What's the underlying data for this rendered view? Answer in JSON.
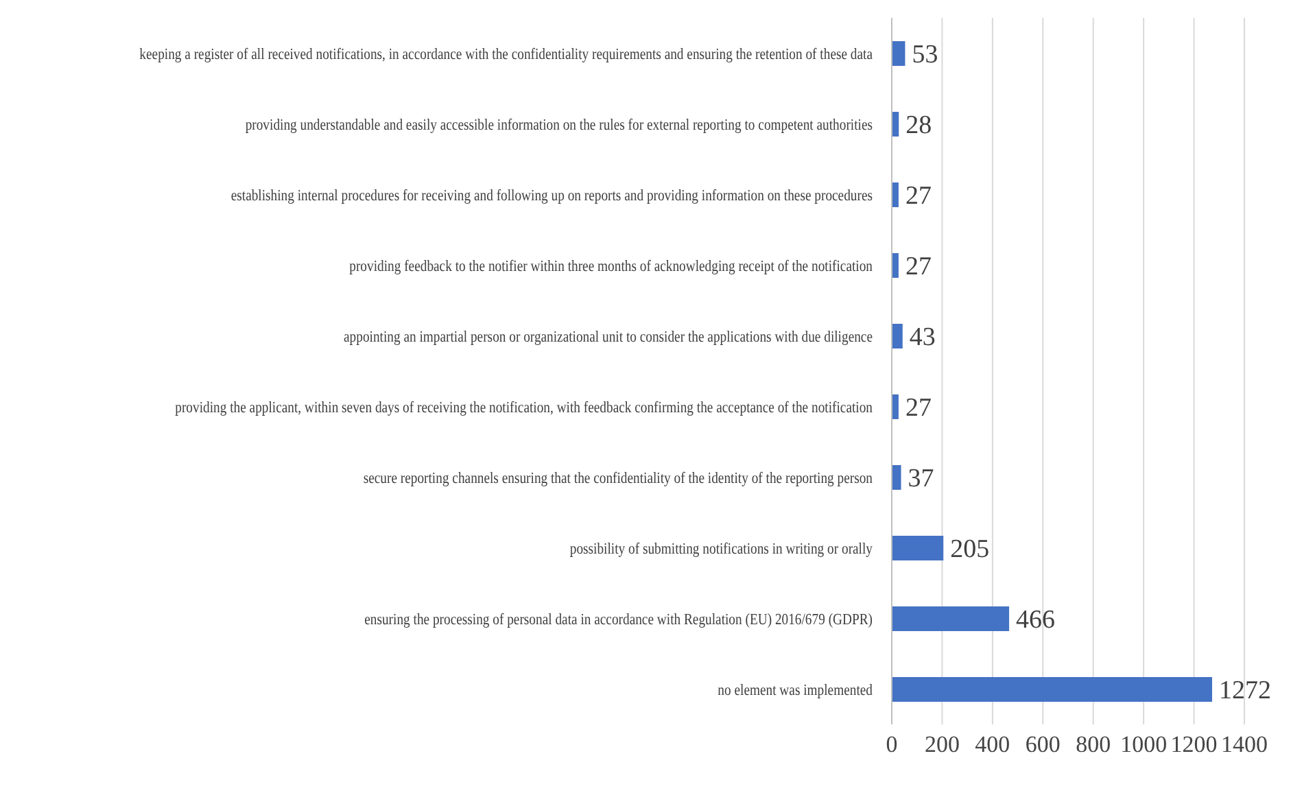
{
  "chart_data": {
    "type": "bar",
    "orientation": "horizontal",
    "categories": [
      "keeping a register of all received notifications, in accordance with the confidentiality requirements and ensuring the retention of these data",
      "providing understandable and easily accessible information on the rules for external reporting to competent authorities",
      "establishing internal procedures for receiving and following up on reports and providing information on these procedures",
      "providing feedback to the notifier within three months of acknowledging receipt of the notification",
      "appointing an impartial person or organizational unit to consider the applications with due diligence",
      "providing the applicant, within seven days of receiving the notification, with feedback confirming the acceptance of the notification",
      "secure reporting channels ensuring that the confidentiality of the identity of the reporting person",
      "possibility of submitting notifications in writing or orally",
      "ensuring the processing of personal data in accordance with Regulation (EU) 2016/679 (GDPR)",
      "no element was implemented"
    ],
    "values": [
      53,
      28,
      27,
      27,
      43,
      27,
      37,
      205,
      466,
      1272
    ],
    "color": "#4472c4",
    "xlim": [
      0,
      1400
    ],
    "xticks": [
      0,
      200,
      400,
      600,
      800,
      1000,
      1200,
      1400
    ],
    "grid": "x",
    "data_labels": true
  }
}
